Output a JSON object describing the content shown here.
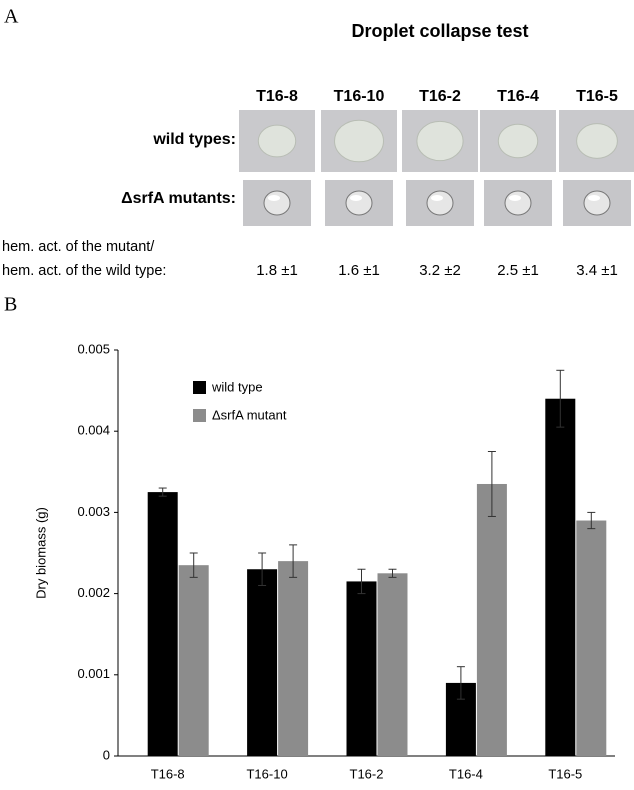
{
  "panel_a": {
    "label": "A",
    "title": "Droplet collapse test",
    "strains": [
      "T16-8",
      "T16-10",
      "T16-2",
      "T16-4",
      "T16-5"
    ],
    "row_wild": "wild types:",
    "row_mutant": "ΔsrfA mutants:",
    "ratio_label_1": "hem. act. of the mutant/",
    "ratio_label_2": "hem. act. of the wild type:",
    "ratios": [
      "1.8 ±1",
      "1.6 ±1",
      "3.2 ±2",
      "2.5 ±1",
      "3.4 ±1"
    ]
  },
  "chart_data": {
    "type": "bar",
    "panel_label": "B",
    "ylabel": "Dry biomass (g)",
    "categories": [
      "T16-8",
      "T16-10",
      "T16-2",
      "T16-4",
      "T16-5"
    ],
    "series": [
      {
        "name": "wild type",
        "color": "#000000",
        "values": [
          0.00325,
          0.0023,
          0.00215,
          0.0009,
          0.0044
        ],
        "errors": [
          5e-05,
          0.0002,
          0.00015,
          0.0002,
          0.00035
        ]
      },
      {
        "name": "ΔsrfA mutant",
        "color": "#8c8c8c",
        "values": [
          0.00235,
          0.0024,
          0.00225,
          0.00335,
          0.0029
        ],
        "errors": [
          0.00015,
          0.0002,
          5e-05,
          0.0004,
          0.0001
        ]
      }
    ],
    "ylim": [
      0,
      0.005
    ],
    "yticks": [
      0,
      0.001,
      0.002,
      0.003,
      0.004,
      0.005
    ],
    "grid": false,
    "legend": "top-left"
  }
}
